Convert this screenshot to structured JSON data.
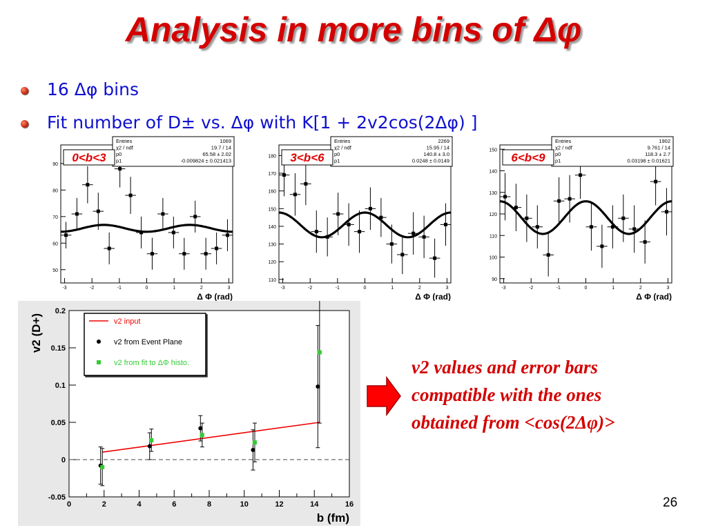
{
  "slide": {
    "title": "Analysis in more bins of Δφ",
    "bullets": [
      "16 Δφ bins",
      "Fit number of D± vs. Δφ with K[1 + 2v2cos(2Δφ) ]"
    ],
    "note": "v2 values and error bars compatible with the ones obtained from <cos(2Δφ)>",
    "page_number": "26",
    "colors": {
      "title": "#d40000",
      "bullet_text": "#1010d0",
      "note": "#d40000",
      "arrow": "#ff0000"
    }
  },
  "chart_data": [
    {
      "type": "scatter",
      "label": "0<b<3",
      "xlabel": "Δ Φ (rad)",
      "xlim": [
        -3.14,
        3.14
      ],
      "ylim": [
        45,
        97
      ],
      "xticks": [
        -3,
        -2,
        -1,
        0,
        1,
        2,
        3
      ],
      "yticks": [
        50,
        60,
        70,
        80,
        90
      ],
      "stats": [
        [
          "Entries",
          "1069"
        ],
        [
          "χ2 / ndf",
          "19.7 / 14"
        ],
        [
          "p0",
          "65.58 ± 2.02"
        ],
        [
          "p1",
          "-0.009824 ± 0.021413"
        ]
      ],
      "fit": {
        "K": 65.58,
        "v2": -0.009824
      },
      "x": [
        -2.95,
        -2.55,
        -2.16,
        -1.77,
        -1.37,
        -0.98,
        -0.59,
        -0.2,
        0.2,
        0.59,
        0.98,
        1.37,
        1.77,
        2.16,
        2.55,
        2.95
      ],
      "y": [
        63,
        71,
        82,
        72,
        58,
        88,
        78,
        64,
        56,
        71,
        64,
        56,
        70,
        56,
        58,
        63
      ],
      "err": [
        5,
        6,
        7,
        7,
        6,
        7,
        7,
        6,
        6,
        6,
        6,
        6,
        6,
        6,
        6,
        6
      ]
    },
    {
      "type": "scatter",
      "label": "3<b<6",
      "xlabel": "Δ Φ (rad)",
      "xlim": [
        -3.14,
        3.14
      ],
      "ylim": [
        108,
        186
      ],
      "xticks": [
        -3,
        -2,
        -1,
        0,
        1,
        2,
        3
      ],
      "yticks": [
        110,
        120,
        130,
        140,
        150,
        160,
        170,
        180
      ],
      "stats": [
        [
          "Entries",
          "2269"
        ],
        [
          "χ2 / ndf",
          "15.95 / 14"
        ],
        [
          "p0",
          "140.8 ± 3.0"
        ],
        [
          "p1",
          "0.0248 ± 0.0149"
        ]
      ],
      "fit": {
        "K": 140.8,
        "v2": 0.0248
      },
      "x": [
        -2.95,
        -2.55,
        -2.16,
        -1.77,
        -1.37,
        -0.98,
        -0.59,
        -0.2,
        0.2,
        0.59,
        0.98,
        1.37,
        1.77,
        2.16,
        2.55,
        2.95
      ],
      "y": [
        169,
        158,
        164,
        137,
        134,
        147,
        141,
        137,
        150,
        145,
        130,
        124,
        136,
        134,
        122,
        141
      ],
      "err": [
        12,
        12,
        12,
        12,
        11,
        12,
        12,
        12,
        12,
        11,
        11,
        11,
        12,
        12,
        11,
        12
      ]
    },
    {
      "type": "scatter",
      "label": "6<b<9",
      "xlabel": "Δ Φ (rad)",
      "xlim": [
        -3.14,
        3.14
      ],
      "ylim": [
        88,
        152
      ],
      "xticks": [
        -3,
        -2,
        -1,
        0,
        1,
        2,
        3
      ],
      "yticks": [
        90,
        100,
        110,
        120,
        130,
        140,
        150
      ],
      "stats": [
        [
          "Entries",
          "1902"
        ],
        [
          "χ2 / ndf",
          "9.761 / 14"
        ],
        [
          "p0",
          "118.3 ± 2.7"
        ],
        [
          "p1",
          "0.03198 ± 0.01621"
        ]
      ],
      "fit": {
        "K": 118.3,
        "v2": 0.03198
      },
      "x": [
        -2.95,
        -2.55,
        -2.16,
        -1.77,
        -1.37,
        -0.98,
        -0.59,
        -0.2,
        0.2,
        0.59,
        0.98,
        1.37,
        1.77,
        2.16,
        2.55,
        2.95
      ],
      "y": [
        128,
        123,
        118,
        114,
        101,
        126,
        127,
        138,
        114,
        105,
        114,
        118,
        113,
        107,
        135,
        121
      ],
      "err": [
        11,
        11,
        11,
        10,
        10,
        11,
        11,
        11,
        11,
        10,
        10,
        11,
        11,
        10,
        11,
        11
      ]
    },
    {
      "type": "scatter",
      "xlabel": "b (fm)",
      "ylabel": "v2 (D+)",
      "xlim": [
        0,
        16
      ],
      "ylim": [
        -0.05,
        0.2
      ],
      "xticks": [
        0,
        2,
        4,
        6,
        8,
        10,
        12,
        14,
        16
      ],
      "yticks": [
        -0.05,
        0,
        0.05,
        0.1,
        0.15,
        0.2
      ],
      "series": [
        {
          "name": "v2 input",
          "style": "line",
          "color": "#ee0000",
          "x": [
            1.9,
            14.3
          ],
          "y": [
            0.01,
            0.05
          ]
        },
        {
          "name": "v2 from Event Plane",
          "color": "#000000",
          "x": [
            1.8,
            4.6,
            7.5,
            10.5,
            14.2
          ],
          "y": [
            -0.008,
            0.018,
            0.042,
            0.013,
            0.098
          ],
          "err": [
            0.025,
            0.018,
            0.017,
            0.027,
            0.082
          ]
        },
        {
          "name": "v2 from fit to ΔΦ histo.",
          "color": "#33cc33",
          "x": [
            1.9,
            4.7,
            7.6,
            10.6,
            14.3
          ],
          "y": [
            -0.01,
            0.026,
            0.033,
            0.023,
            0.144
          ],
          "err": [
            0.025,
            0.015,
            0.016,
            0.026,
            0.095
          ]
        }
      ],
      "legend": {
        "placement": "top-left",
        "entries": [
          "v2 input",
          "v2 from Event Plane",
          "v2 from fit to ΔΦ histo."
        ]
      }
    }
  ]
}
